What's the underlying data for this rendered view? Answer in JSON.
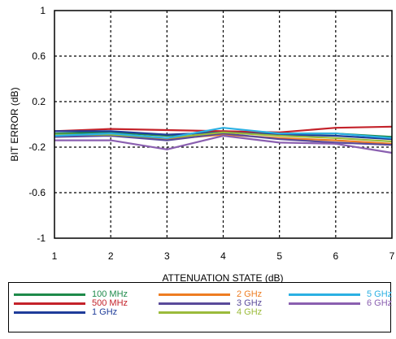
{
  "chart_data": {
    "type": "line",
    "title": "",
    "xlabel": "ATTENUATION STATE (dB)",
    "ylabel": "BIT ERROR (dB)",
    "xlim": [
      1,
      7
    ],
    "ylim": [
      -1,
      1
    ],
    "grid": true,
    "legend_position": "bottom",
    "x": [
      1,
      2,
      3,
      4,
      5,
      6,
      7
    ],
    "x_ticks": [
      "1",
      "2",
      "3",
      "4",
      "5",
      "6",
      "7"
    ],
    "y_ticks": [
      "1",
      "0.6",
      "0.2",
      "-0.2",
      "-0.6",
      "-1"
    ],
    "series": [
      {
        "name": "100 MHz",
        "color": "#1e8a4a",
        "values": [
          -0.08,
          -0.07,
          -0.1,
          -0.06,
          -0.08,
          -0.08,
          -0.11
        ]
      },
      {
        "name": "500 MHz",
        "color": "#c4222a",
        "values": [
          -0.06,
          -0.04,
          -0.05,
          -0.06,
          -0.07,
          -0.03,
          -0.02
        ]
      },
      {
        "name": "1 GHz",
        "color": "#1f3c9a",
        "values": [
          -0.06,
          -0.06,
          -0.09,
          -0.07,
          -0.09,
          -0.1,
          -0.13
        ]
      },
      {
        "name": "2 GHz",
        "color": "#ee7d22",
        "values": [
          -0.09,
          -0.1,
          -0.13,
          -0.09,
          -0.12,
          -0.14,
          -0.17
        ]
      },
      {
        "name": "3 GHz",
        "color": "#5a4a9a",
        "values": [
          -0.11,
          -0.1,
          -0.14,
          -0.08,
          -0.13,
          -0.16,
          -0.18
        ]
      },
      {
        "name": "4 GHz",
        "color": "#9bbb3b",
        "values": [
          -0.09,
          -0.09,
          -0.12,
          -0.07,
          -0.1,
          -0.12,
          -0.15
        ]
      },
      {
        "name": "5 GHz",
        "color": "#2bb0e3",
        "values": [
          -0.1,
          -0.08,
          -0.12,
          -0.03,
          -0.08,
          -0.08,
          -0.12
        ]
      },
      {
        "name": "6 GHz",
        "color": "#8a5fb0",
        "values": [
          -0.14,
          -0.14,
          -0.22,
          -0.1,
          -0.16,
          -0.17,
          -0.25
        ]
      }
    ]
  }
}
